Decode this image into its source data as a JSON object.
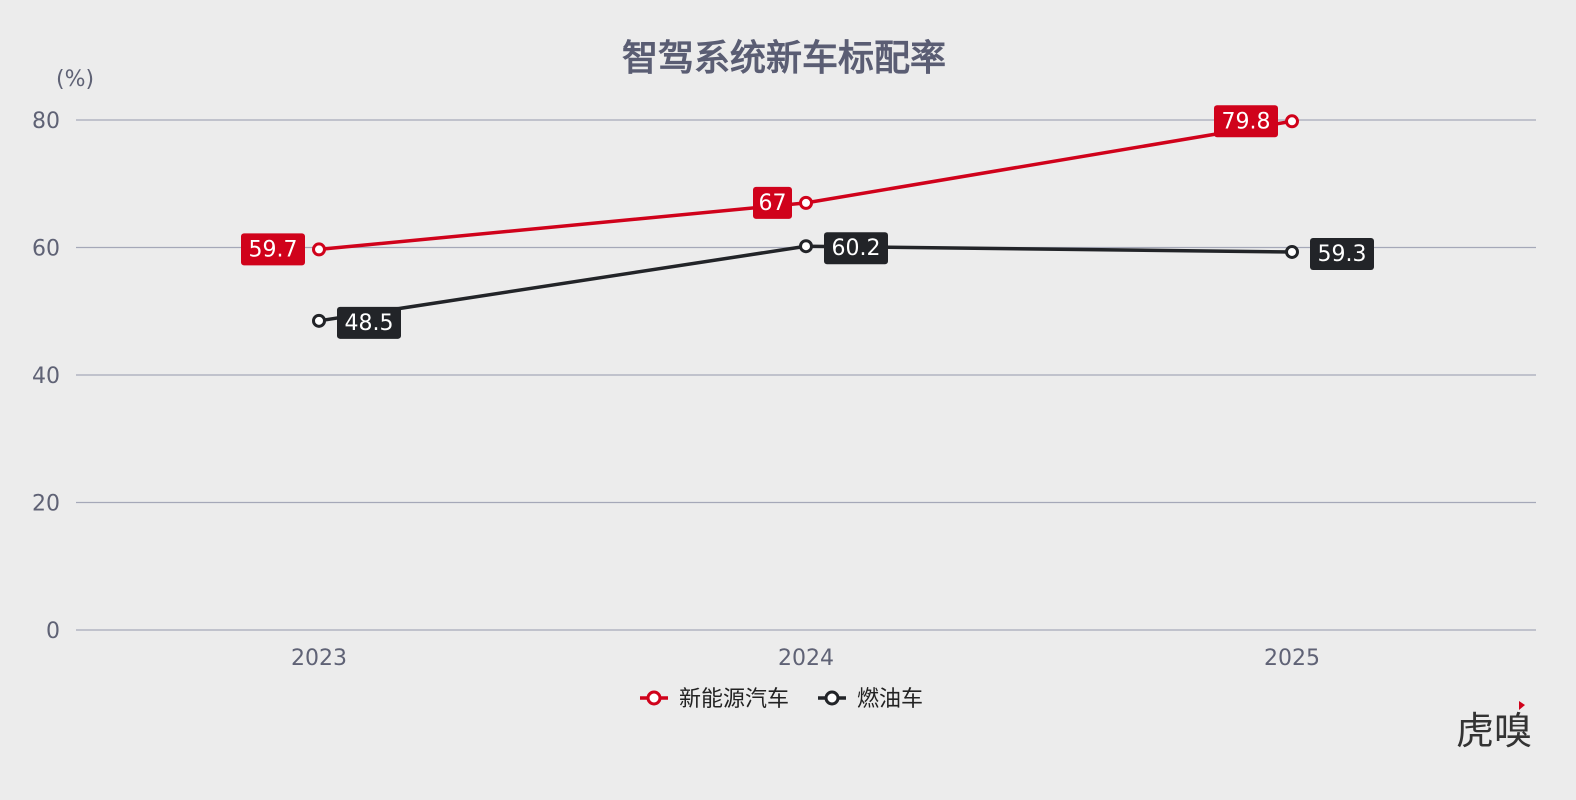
{
  "chart_data": {
    "type": "line",
    "title": "智驾系统新车标配率",
    "ylabel": "(%)",
    "xlabel": "",
    "categories": [
      "2023",
      "2024",
      "2025"
    ],
    "series": [
      {
        "name": "新能源汽车",
        "values": [
          59.7,
          67,
          79.8
        ],
        "color": "#d0021b"
      },
      {
        "name": "燃油车",
        "values": [
          48.5,
          60.2,
          59.3
        ],
        "color": "#222428"
      }
    ],
    "ylim": [
      0,
      80
    ],
    "yticks": [
      "0",
      "20",
      "40",
      "60",
      "80"
    ],
    "grid": true,
    "legend_position": "bottom-center"
  },
  "watermark": "虎嗅"
}
